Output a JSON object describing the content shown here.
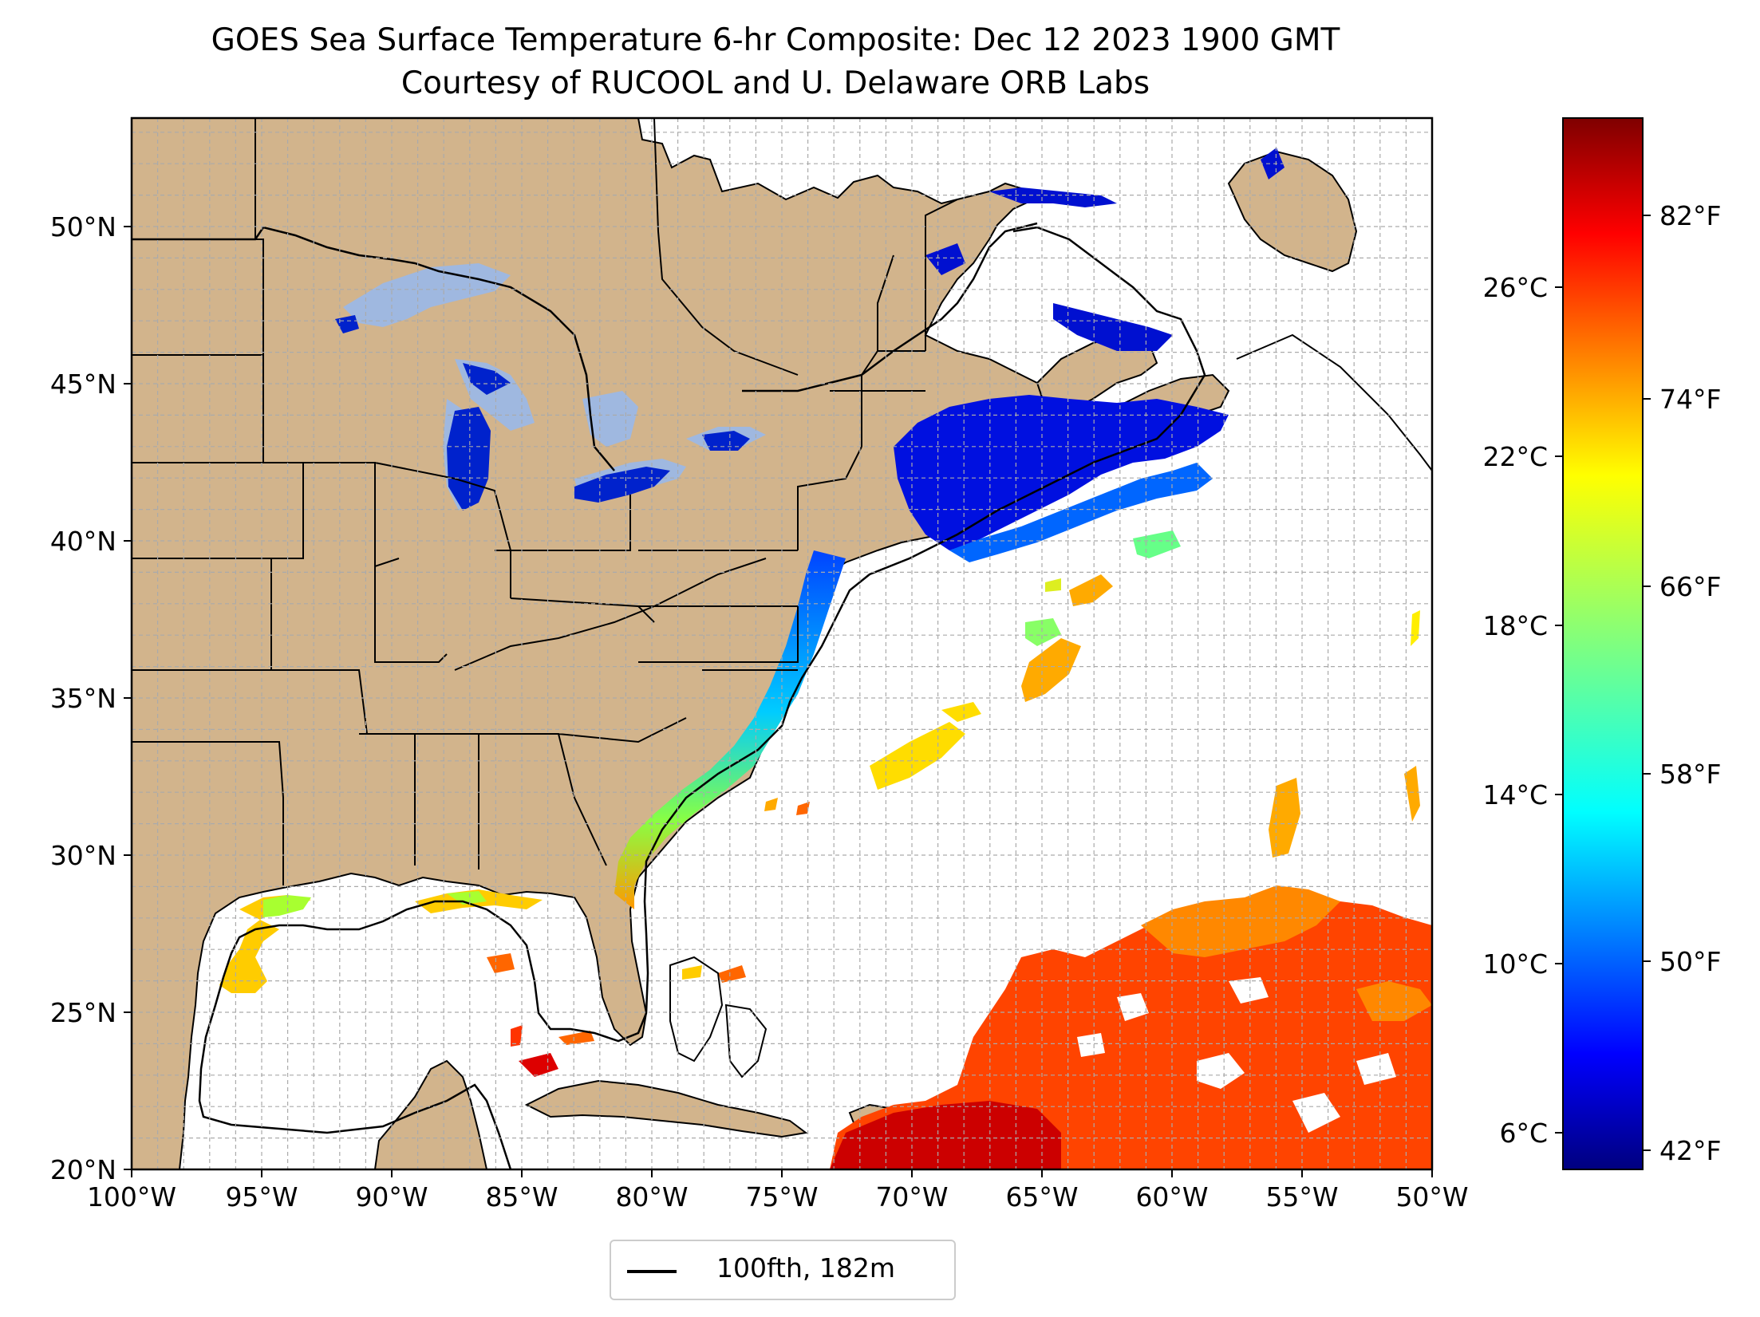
{
  "title": {
    "line1": "GOES Sea Surface Temperature 6-hr Composite: Dec 12 2023 1900 GMT",
    "line2": "Courtesy of RUCOOL and U. Delaware ORB Labs"
  },
  "map": {
    "lon_range": [
      -100,
      -50
    ],
    "lat_range": [
      20,
      52
    ],
    "lon_ticks": [
      "100°W",
      "95°W",
      "90°W",
      "85°W",
      "80°W",
      "75°W",
      "70°W",
      "65°W",
      "60°W",
      "55°W",
      "50°W"
    ],
    "lat_ticks": [
      "20°N",
      "25°N",
      "30°N",
      "35°N",
      "40°N",
      "45°N",
      "50°N"
    ],
    "land_color": "#d2b48c",
    "water_color": "#ffffff",
    "grid": true
  },
  "legend": {
    "label": "100fth, 182m",
    "line_color": "#000000"
  },
  "colorbar": {
    "colormap": "jet",
    "celsius_ticks": [
      "26°C",
      "22°C",
      "18°C",
      "14°C",
      "10°C",
      "6°C"
    ],
    "fahrenheit_ticks": [
      "82°F",
      "74°F",
      "66°F",
      "58°F",
      "50°F",
      "42°F"
    ]
  }
}
